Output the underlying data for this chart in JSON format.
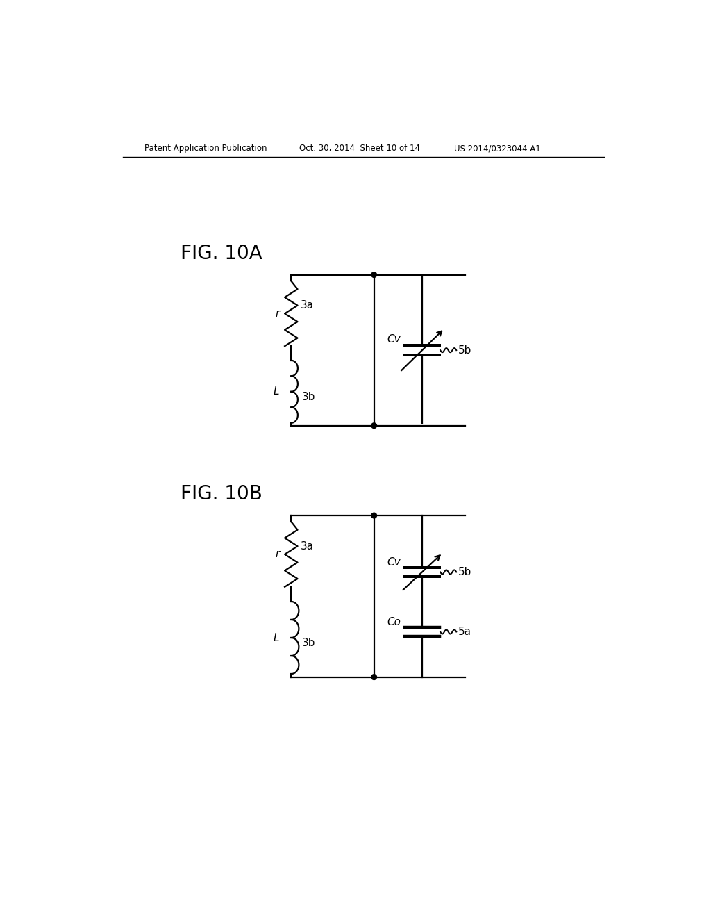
{
  "bg_color": "#ffffff",
  "line_color": "#000000",
  "header_left": "Patent Application Publication",
  "header_mid": "Oct. 30, 2014  Sheet 10 of 14",
  "header_right": "US 2014/0323044 A1",
  "fig10a_label": "FIG. 10A",
  "fig10b_label": "FIG. 10B",
  "figsize": [
    10.24,
    13.2
  ],
  "dpi": 100,
  "lw": 1.6
}
